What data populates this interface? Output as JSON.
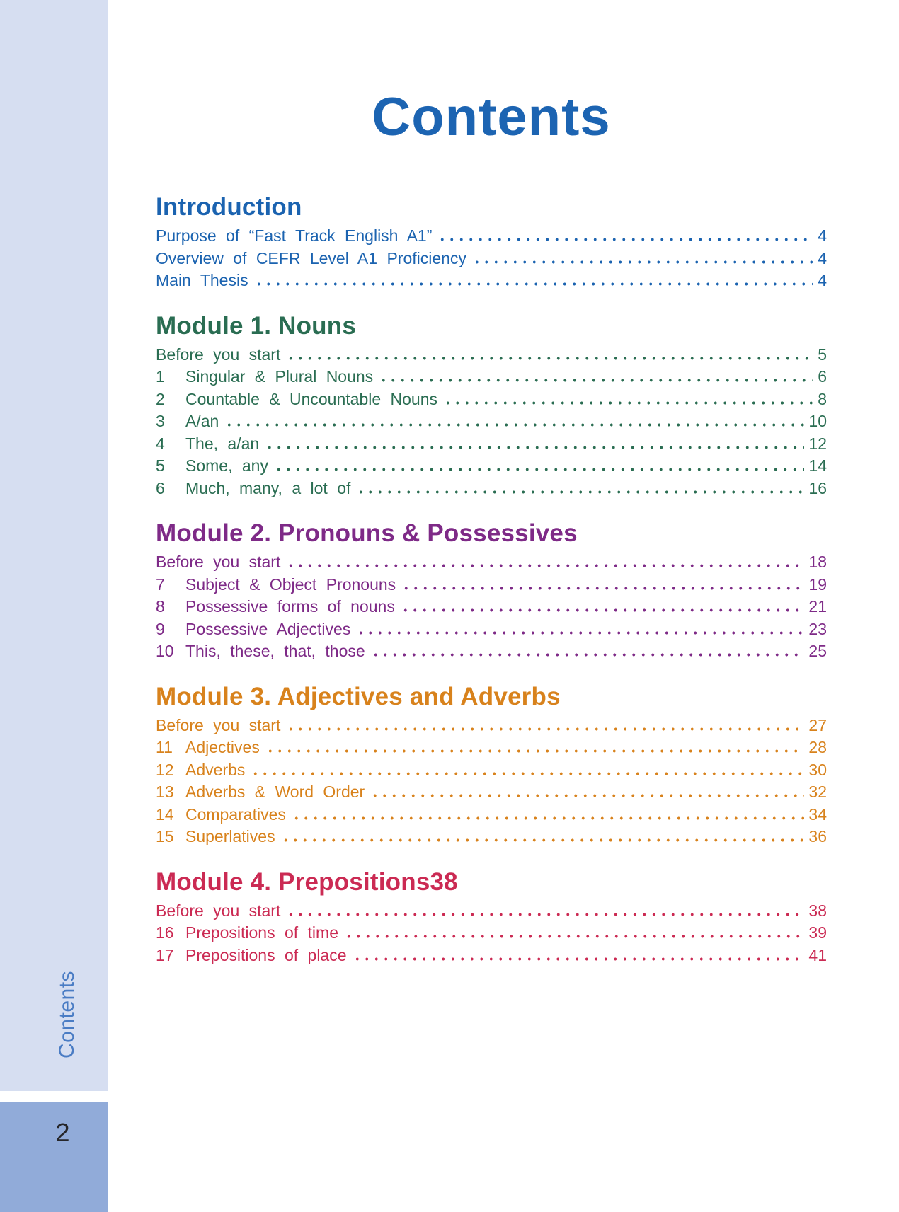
{
  "page": {
    "title": "Contents",
    "sidebar_label": "Contents",
    "page_number": "2"
  },
  "colors": {
    "title_blue": "#1c64b2",
    "sidebar_bg": "#d6def1",
    "sidebar_text": "#4a7cc4",
    "page_number_box": "#91abd9",
    "intro_blue": "#1b63b0",
    "module1_green": "#2a6d52",
    "module2_purple": "#7e2a87",
    "module3_orange": "#d8821c",
    "module4_crimson": "#cb2a53"
  },
  "sections": [
    {
      "heading": "Introduction",
      "entries": [
        {
          "num": "",
          "label": "Purpose of “Fast Track English A1”",
          "page": "4"
        },
        {
          "num": "",
          "label": "Overview of CEFR Level A1 Proficiency",
          "page": "4"
        },
        {
          "num": "",
          "label": "Main Thesis",
          "page": "4"
        }
      ]
    },
    {
      "heading": "Module 1. Nouns",
      "entries": [
        {
          "num": "",
          "label": "Before you start",
          "page": "5"
        },
        {
          "num": "1",
          "label": "Singular & Plural Nouns",
          "page": "6"
        },
        {
          "num": "2",
          "label": "Countable & Uncountable Nouns",
          "page": "8"
        },
        {
          "num": "3",
          "label": "A/an",
          "page": "10"
        },
        {
          "num": "4",
          "label": "The, a/an",
          "page": "12"
        },
        {
          "num": "5",
          "label": "Some, any",
          "page": "14"
        },
        {
          "num": "6",
          "label": "Much, many, a lot of",
          "page": "16"
        }
      ]
    },
    {
      "heading": "Module 2. Pronouns & Possessives",
      "entries": [
        {
          "num": "",
          "label": "Before you start",
          "page": "18"
        },
        {
          "num": "7",
          "label": "Subject & Object Pronouns",
          "page": "19"
        },
        {
          "num": "8",
          "label": "Possessive forms of nouns",
          "page": "21"
        },
        {
          "num": "9",
          "label": "Possessive Adjectives",
          "page": "23"
        },
        {
          "num": "10",
          "label": "This, these, that, those",
          "page": "25"
        }
      ]
    },
    {
      "heading": "Module 3. Adjectives and Adverbs",
      "entries": [
        {
          "num": "",
          "label": "Before you start",
          "page": "27"
        },
        {
          "num": "11",
          "label": "Adjectives",
          "page": "28"
        },
        {
          "num": "12",
          "label": "Adverbs",
          "page": "30"
        },
        {
          "num": "13",
          "label": "Adverbs & Word Order",
          "page": "32"
        },
        {
          "num": "14",
          "label": "Comparatives",
          "page": "34"
        },
        {
          "num": "15",
          "label": "Superlatives",
          "page": "36"
        }
      ]
    },
    {
      "heading": "Module 4. Prepositions38",
      "entries": [
        {
          "num": "",
          "label": "Before you start",
          "page": "38"
        },
        {
          "num": "16",
          "label": "Prepositions of time",
          "page": "39"
        },
        {
          "num": "17",
          "label": "Prepositions of place",
          "page": "41"
        }
      ]
    }
  ]
}
